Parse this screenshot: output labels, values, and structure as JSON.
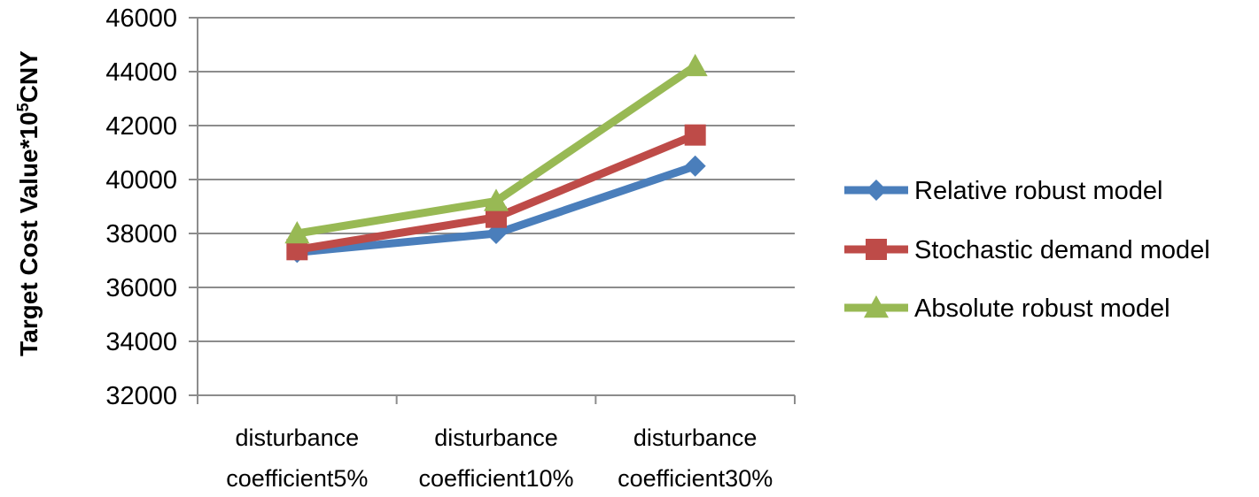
{
  "chart_data": {
    "type": "line",
    "title": "",
    "xlabel": "",
    "ylabel": {
      "prefix": "Target Cost Value*10",
      "superscript": "5",
      "suffix": "CNY"
    },
    "ylim": [
      32000,
      46000
    ],
    "yticks": [
      "32000",
      "34000",
      "36000",
      "38000",
      "40000",
      "42000",
      "44000",
      "46000"
    ],
    "grid": true,
    "legend_position": "right",
    "categories": [
      [
        "disturbance",
        "coefficient5%"
      ],
      [
        "disturbance",
        "coefficient10%"
      ],
      [
        "disturbance",
        "coefficient30%"
      ]
    ],
    "series": [
      {
        "name": "Relative robust model",
        "values": [
          37300,
          38000,
          40500
        ],
        "color": "#4a7ebb",
        "marker": "diamond"
      },
      {
        "name": "Stochastic demand model",
        "values": [
          37400,
          38600,
          41650
        ],
        "color": "#be4b48",
        "marker": "square"
      },
      {
        "name": "Absolute robust model",
        "values": [
          38000,
          39200,
          44200
        ],
        "color": "#98b954",
        "marker": "triangle"
      }
    ]
  }
}
